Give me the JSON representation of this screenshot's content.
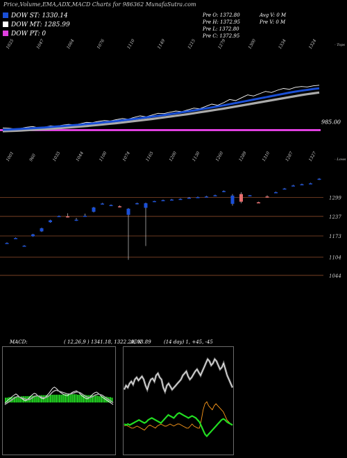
{
  "header": {
    "title": "Price,Volume,EMA,ADX,MACD Charts for 986362  MunafaSutra.com"
  },
  "legend": [
    {
      "label": "DOW ST: 1330.14",
      "color": "#1a4fd6"
    },
    {
      "label": "DOW MT: 1285.99",
      "color": "#ffffff"
    },
    {
      "label": "DOW PT: 0",
      "color": "#e040e0"
    }
  ],
  "stats": {
    "left": [
      "Pre   O: 1372.80",
      "Pre   H: 1372.95",
      "Pre   L: 1372.80",
      "Pre   C: 1372.95"
    ],
    "right": [
      "Avg V: 0   M",
      "Pre   V: 0   M"
    ]
  },
  "chart_data": [
    {
      "type": "line",
      "name": "price-ema-panel",
      "side_label_top": "- Tops",
      "top_labels": [
        "1025",
        "1047",
        "1064",
        "1076",
        "1110",
        "1149",
        "1215",
        "1279",
        "1300",
        "1334",
        "1324"
      ],
      "bottom_side_label": "- Lows",
      "bottom_labels": [
        "1001",
        "960",
        "1035",
        "1044",
        "1100",
        "1074",
        "1165",
        "1200",
        "1130",
        "1260",
        "1289",
        "1310",
        "1287",
        "1327"
      ],
      "last_value_label": "985.00",
      "series": [
        {
          "color": "#ffffff",
          "values": [
            1004,
            1001,
            996,
            1000,
            1010,
            1016,
            1005,
            1010,
            1022,
            1020,
            1028,
            1035,
            1032,
            1040,
            1052,
            1050,
            1060,
            1068,
            1064,
            1075,
            1085,
            1080,
            1095,
            1108,
            1100,
            1115,
            1130,
            1128,
            1140,
            1150,
            1145,
            1160,
            1175,
            1170,
            1190,
            1210,
            1200,
            1222,
            1250,
            1240,
            1265,
            1290,
            1280,
            1300,
            1320,
            1310,
            1330,
            1345,
            1338,
            1355,
            1362,
            1358,
            1368,
            1373
          ]
        },
        {
          "color": "#1a4fd6",
          "values": [
            988,
            990,
            992,
            995,
            998,
            1002,
            1005,
            1008,
            1012,
            1016,
            1020,
            1024,
            1028,
            1032,
            1037,
            1042,
            1047,
            1052,
            1057,
            1063,
            1069,
            1075,
            1081,
            1088,
            1095,
            1102,
            1109,
            1116,
            1123,
            1131,
            1139,
            1147,
            1155,
            1163,
            1172,
            1181,
            1190,
            1199,
            1209,
            1219,
            1229,
            1239,
            1249,
            1259,
            1269,
            1279,
            1289,
            1299,
            1309,
            1318,
            1326,
            1333,
            1340,
            1346
          ]
        },
        {
          "color": "#aaaaaa",
          "values": [
            975,
            977,
            979,
            981,
            984,
            987,
            990,
            993,
            996,
            1000,
            1004,
            1008,
            1012,
            1016,
            1020,
            1025,
            1030,
            1035,
            1040,
            1045,
            1051,
            1057,
            1063,
            1069,
            1075,
            1081,
            1088,
            1095,
            1102,
            1109,
            1116,
            1123,
            1131,
            1139,
            1147,
            1155,
            1163,
            1171,
            1180,
            1189,
            1198,
            1207,
            1216,
            1225,
            1234,
            1243,
            1252,
            1261,
            1270,
            1279,
            1288,
            1296,
            1303,
            1310
          ]
        }
      ],
      "h_line": {
        "value": 985.0,
        "color": "#e040e0"
      },
      "ylim": [
        940,
        1420
      ]
    },
    {
      "type": "candlestick",
      "name": "candle-panel",
      "y_ticks": [
        "1299",
        "1237",
        "1173",
        "1104",
        "1044"
      ],
      "ylim": [
        980,
        1400
      ],
      "candles": [
        {
          "o": 1150,
          "h": 1152,
          "l": 1148,
          "c": 1150,
          "color": "#1a4fd6"
        },
        {
          "o": 1165,
          "h": 1168,
          "l": 1163,
          "c": 1166,
          "color": "#1a4fd6"
        },
        {
          "o": 1140,
          "h": 1143,
          "l": 1138,
          "c": 1141,
          "color": "#1a4fd6"
        },
        {
          "o": 1172,
          "h": 1180,
          "l": 1170,
          "c": 1178,
          "color": "#1a4fd6"
        },
        {
          "o": 1188,
          "h": 1200,
          "l": 1186,
          "c": 1198,
          "color": "#1a4fd6"
        },
        {
          "o": 1218,
          "h": 1226,
          "l": 1216,
          "c": 1224,
          "color": "#1a4fd6"
        },
        {
          "o": 1238,
          "h": 1240,
          "l": 1236,
          "c": 1238,
          "color": "#1a4fd6"
        },
        {
          "o": 1237,
          "h": 1247,
          "l": 1233,
          "c": 1236,
          "color": "#e86e6e"
        },
        {
          "o": 1225,
          "h": 1232,
          "l": 1222,
          "c": 1226,
          "color": "#1a4fd6"
        },
        {
          "o": 1238,
          "h": 1246,
          "l": 1236,
          "c": 1239,
          "color": "#1a4fd6"
        },
        {
          "o": 1252,
          "h": 1268,
          "l": 1250,
          "c": 1266,
          "color": "#1a4fd6"
        },
        {
          "o": 1278,
          "h": 1281,
          "l": 1276,
          "c": 1279,
          "color": "#1a4fd6"
        },
        {
          "o": 1273,
          "h": 1276,
          "l": 1271,
          "c": 1274,
          "color": "#1a4fd6"
        },
        {
          "o": 1269,
          "h": 1273,
          "l": 1266,
          "c": 1270,
          "color": "#e86e6e"
        },
        {
          "o": 1242,
          "h": 1264,
          "l": 1095,
          "c": 1262,
          "color": "#1a4fd6"
        },
        {
          "o": 1278,
          "h": 1282,
          "l": 1276,
          "c": 1280,
          "color": "#1a4fd6"
        },
        {
          "o": 1265,
          "h": 1282,
          "l": 1140,
          "c": 1280,
          "color": "#1a4fd6"
        },
        {
          "o": 1286,
          "h": 1288,
          "l": 1284,
          "c": 1287,
          "color": "#1a4fd6"
        },
        {
          "o": 1290,
          "h": 1292,
          "l": 1288,
          "c": 1290,
          "color": "#1a4fd6"
        },
        {
          "o": 1292,
          "h": 1294,
          "l": 1290,
          "c": 1292,
          "color": "#1a4fd6"
        },
        {
          "o": 1294,
          "h": 1296,
          "l": 1292,
          "c": 1294,
          "color": "#1a4fd6"
        },
        {
          "o": 1298,
          "h": 1300,
          "l": 1296,
          "c": 1298,
          "color": "#1a4fd6"
        },
        {
          "o": 1300,
          "h": 1302,
          "l": 1298,
          "c": 1300,
          "color": "#1a4fd6"
        },
        {
          "o": 1302,
          "h": 1304,
          "l": 1300,
          "c": 1302,
          "color": "#1a4fd6"
        },
        {
          "o": 1306,
          "h": 1308,
          "l": 1304,
          "c": 1306,
          "color": "#1a4fd6"
        },
        {
          "o": 1318,
          "h": 1322,
          "l": 1316,
          "c": 1320,
          "color": "#1a4fd6"
        },
        {
          "o": 1278,
          "h": 1310,
          "l": 1272,
          "c": 1305,
          "color": "#1a4fd6"
        },
        {
          "o": 1310,
          "h": 1316,
          "l": 1280,
          "c": 1285,
          "color": "#e86e6e"
        },
        {
          "o": 1305,
          "h": 1307,
          "l": 1303,
          "c": 1306,
          "color": "#1a4fd6"
        },
        {
          "o": 1282,
          "h": 1285,
          "l": 1280,
          "c": 1283,
          "color": "#e86e6e"
        },
        {
          "o": 1302,
          "h": 1306,
          "l": 1298,
          "c": 1300,
          "color": "#e86e6e"
        },
        {
          "o": 1315,
          "h": 1318,
          "l": 1313,
          "c": 1316,
          "color": "#1a4fd6"
        },
        {
          "o": 1328,
          "h": 1330,
          "l": 1326,
          "c": 1328,
          "color": "#1a4fd6"
        },
        {
          "o": 1338,
          "h": 1340,
          "l": 1336,
          "c": 1338,
          "color": "#1a4fd6"
        },
        {
          "o": 1342,
          "h": 1344,
          "l": 1340,
          "c": 1342,
          "color": "#1a4fd6"
        },
        {
          "o": 1345,
          "h": 1347,
          "l": 1343,
          "c": 1345,
          "color": "#1a4fd6"
        },
        {
          "o": 1358,
          "h": 1362,
          "l": 1356,
          "c": 1360,
          "color": "#1a4fd6"
        }
      ]
    },
    {
      "type": "line",
      "name": "macd-panel",
      "label": "MACD:",
      "params": "( 12,26,9 ) 1341.18,  1322.29,  18.89",
      "histogram": [
        10,
        10,
        11,
        11,
        11,
        12,
        12,
        12,
        12,
        13,
        13,
        13,
        13,
        13,
        14,
        14,
        14,
        14,
        14,
        15,
        15,
        15,
        15,
        15,
        15,
        16,
        16,
        16,
        16,
        16,
        16,
        16,
        17,
        17,
        17,
        17,
        17,
        17,
        17,
        17,
        16,
        16,
        16,
        16,
        16,
        15,
        15,
        15,
        15,
        14,
        14,
        14,
        13,
        13,
        13,
        12,
        12,
        11,
        11,
        10
      ],
      "series": [
        {
          "color": "#ffffff",
          "values": [
            42,
            45,
            48,
            50,
            53,
            55,
            57,
            55,
            52,
            50,
            48,
            46,
            47,
            50,
            53,
            56,
            58,
            57,
            54,
            52,
            50,
            49,
            51,
            55,
            58,
            62,
            66,
            68,
            66,
            63,
            60,
            58,
            56,
            55,
            54,
            56,
            58,
            60,
            61,
            62,
            60,
            57,
            54,
            52,
            50,
            49,
            51,
            54,
            57,
            59,
            60,
            58,
            55,
            52,
            50,
            48,
            46,
            44,
            42,
            40
          ]
        },
        {
          "color": "#aaaaaa",
          "values": [
            40,
            42,
            44,
            46,
            48,
            50,
            52,
            53,
            52,
            51,
            50,
            49,
            48,
            48,
            49,
            51,
            53,
            54,
            54,
            53,
            52,
            51,
            51,
            52,
            54,
            57,
            60,
            62,
            63,
            62,
            61,
            60,
            59,
            58,
            57,
            57,
            57,
            58,
            59,
            60,
            60,
            59,
            57,
            55,
            53,
            52,
            51,
            52,
            53,
            55,
            56,
            57,
            56,
            55,
            53,
            51,
            49,
            47,
            45,
            43
          ]
        }
      ],
      "ylim": [
        0,
        100
      ]
    },
    {
      "type": "line",
      "name": "adx-panel",
      "label": "ADX",
      "params": "(14 day) 1,  +45,  -45",
      "series": [
        {
          "color": "#ffffff",
          "values": [
            60,
            64,
            62,
            66,
            68,
            65,
            70,
            72,
            69,
            71,
            73,
            70,
            64,
            60,
            66,
            70,
            71,
            68,
            74,
            76,
            72,
            70,
            62,
            58,
            64,
            66,
            63,
            60,
            62,
            64,
            66,
            68,
            70,
            74,
            76,
            78,
            73,
            70,
            72,
            75,
            78,
            80,
            77,
            74,
            78,
            82,
            86,
            90,
            88,
            84,
            86,
            90,
            88,
            84,
            80,
            82,
            86,
            80,
            74,
            70,
            66,
            62
          ]
        },
        {
          "color": "#ff9a1a",
          "values": [
            24,
            25,
            24,
            23,
            22,
            22,
            23,
            24,
            23,
            22,
            21,
            20,
            22,
            24,
            25,
            24,
            23,
            22,
            24,
            25,
            26,
            25,
            24,
            24,
            25,
            26,
            25,
            24,
            25,
            26,
            26,
            25,
            24,
            23,
            22,
            22,
            24,
            26,
            24,
            23,
            22,
            22,
            30,
            40,
            46,
            48,
            44,
            42,
            40,
            44,
            46,
            44,
            42,
            40,
            38,
            34,
            30,
            28,
            26,
            25
          ]
        },
        {
          "color": "#22dd22",
          "values": [
            26,
            25,
            26,
            25,
            26,
            27,
            28,
            29,
            30,
            29,
            28,
            27,
            28,
            30,
            31,
            32,
            31,
            30,
            29,
            28,
            27,
            29,
            31,
            33,
            35,
            34,
            33,
            32,
            34,
            36,
            37,
            36,
            35,
            34,
            33,
            32,
            33,
            34,
            33,
            32,
            30,
            28,
            24,
            20,
            16,
            14,
            16,
            18,
            20,
            22,
            24,
            26,
            28,
            30,
            31,
            30,
            28,
            27,
            26,
            25
          ]
        }
      ],
      "ylim": [
        0,
        100
      ]
    }
  ]
}
